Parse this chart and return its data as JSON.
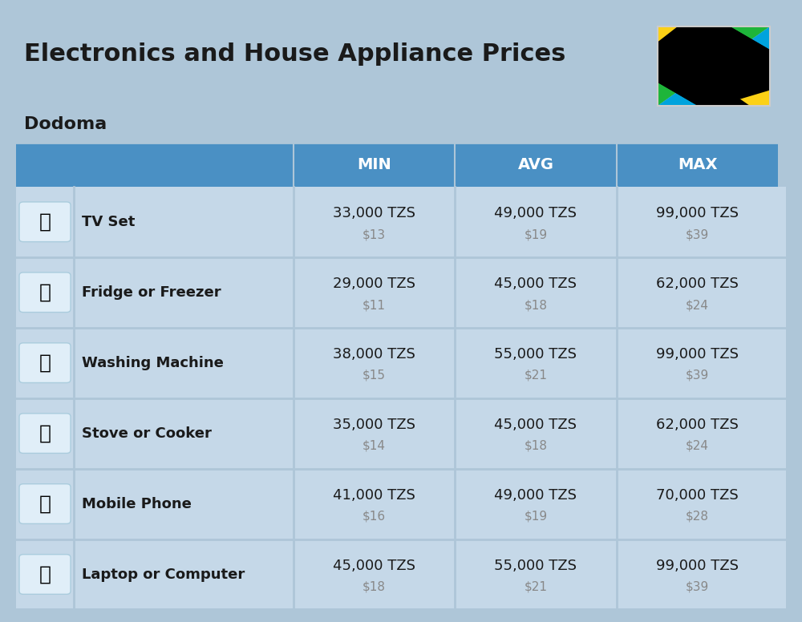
{
  "title": "Electronics and House Appliance Prices",
  "subtitle": "Dodoma",
  "background_color": "#aec6d8",
  "header_color": "#4a90c4",
  "header_text_color": "#ffffff",
  "row_bg_color": "#c5d8e8",
  "separator_color": "#7aaabf",
  "title_color": "#1a1a1a",
  "subtitle_color": "#1a1a1a",
  "tzs_color": "#1a1a1a",
  "usd_color": "#888888",
  "item_name_color": "#1a1a1a",
  "columns": [
    "MIN",
    "AVG",
    "MAX"
  ],
  "rows": [
    {
      "name": "TV Set",
      "min_tzs": "33,000 TZS",
      "min_usd": "$13",
      "avg_tzs": "49,000 TZS",
      "avg_usd": "$19",
      "max_tzs": "99,000 TZS",
      "max_usd": "$39",
      "emoji": "📺"
    },
    {
      "name": "Fridge or Freezer",
      "min_tzs": "29,000 TZS",
      "min_usd": "$11",
      "avg_tzs": "45,000 TZS",
      "avg_usd": "$18",
      "max_tzs": "62,000 TZS",
      "max_usd": "$24",
      "emoji": "📦"
    },
    {
      "name": "Washing Machine",
      "min_tzs": "38,000 TZS",
      "min_usd": "$15",
      "avg_tzs": "55,000 TZS",
      "avg_usd": "$21",
      "max_tzs": "99,000 TZS",
      "max_usd": "$39",
      "emoji": "🧹"
    },
    {
      "name": "Stove or Cooker",
      "min_tzs": "35,000 TZS",
      "min_usd": "$14",
      "avg_tzs": "45,000 TZS",
      "avg_usd": "$18",
      "max_tzs": "62,000 TZS",
      "max_usd": "$24",
      "emoji": "🔥"
    },
    {
      "name": "Mobile Phone",
      "min_tzs": "41,000 TZS",
      "min_usd": "$16",
      "avg_tzs": "49,000 TZS",
      "avg_usd": "$19",
      "max_tzs": "70,000 TZS",
      "max_usd": "$28",
      "emoji": "📱"
    },
    {
      "name": "Laptop or Computer",
      "min_tzs": "45,000 TZS",
      "min_usd": "$18",
      "avg_tzs": "55,000 TZS",
      "avg_usd": "$21",
      "max_tzs": "99,000 TZS",
      "max_usd": "$39",
      "emoji": "💻"
    }
  ],
  "flag_colors": {
    "green": "#1eb53a",
    "yellow": "#fcd116",
    "blue": "#00a3dd",
    "black": "#000000"
  }
}
